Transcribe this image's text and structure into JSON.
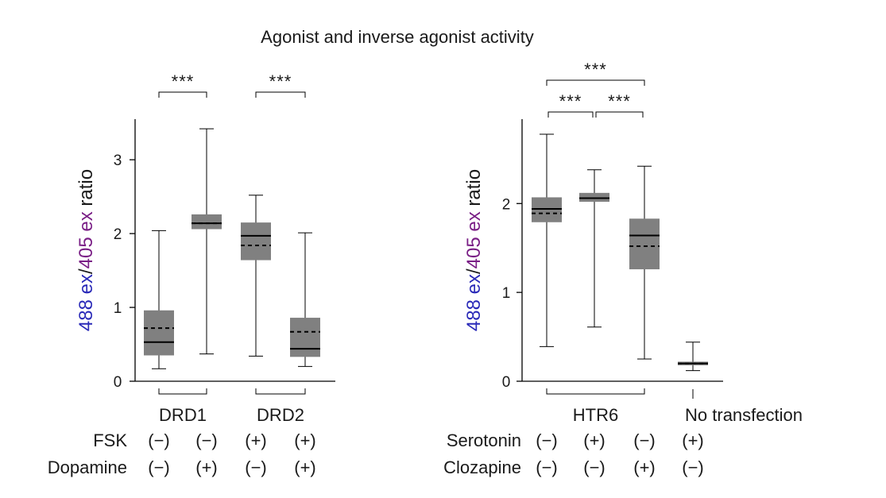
{
  "title": "Agonist and inverse agonist activity",
  "colors": {
    "box_fill": "#808080",
    "line": "#000000",
    "ylabel_blue": "#2a2ab8",
    "ylabel_purple": "#7a1f86",
    "ylabel_dark": "#1a1a1a"
  },
  "ylabel": {
    "part1": "488 ex",
    "slash": "/",
    "part2": "405 ex",
    "part3": " ratio"
  },
  "chart_data": [
    {
      "type": "box",
      "ylabel": "488 ex/405 ex ratio",
      "ylim": [
        0,
        3.55
      ],
      "yticks": [
        0,
        1,
        2,
        3
      ],
      "grid": false,
      "boxes": [
        {
          "median": 0.53,
          "mean": 0.72,
          "q1": 0.35,
          "q3": 0.96,
          "whisker_low": 0.17,
          "whisker_high": 2.04
        },
        {
          "median": 2.14,
          "mean": 2.14,
          "q1": 2.06,
          "q3": 2.26,
          "whisker_low": 0.37,
          "whisker_high": 3.42
        },
        {
          "median": 1.97,
          "mean": 1.84,
          "q1": 1.64,
          "q3": 2.15,
          "whisker_low": 0.34,
          "whisker_high": 2.52
        },
        {
          "median": 0.44,
          "mean": 0.67,
          "q1": 0.33,
          "q3": 0.86,
          "whisker_low": 0.2,
          "whisker_high": 2.01
        }
      ],
      "groups": [
        {
          "label": "DRD1",
          "boxes": [
            0,
            1
          ]
        },
        {
          "label": "DRD2",
          "boxes": [
            2,
            3
          ]
        }
      ],
      "significance": [
        {
          "from": 0,
          "to": 1,
          "label": "***",
          "level": 0
        },
        {
          "from": 2,
          "to": 3,
          "label": "***",
          "level": 0
        }
      ],
      "condition_rows": [
        {
          "label": "FSK",
          "values": [
            "(−)",
            "(−)",
            "(+)",
            "(+)"
          ]
        },
        {
          "label": "Dopamine",
          "values": [
            "(−)",
            "(+)",
            "(−)",
            "(+)"
          ]
        }
      ]
    },
    {
      "type": "box",
      "ylabel": "488 ex/405 ex ratio",
      "ylim": [
        0,
        2.95
      ],
      "yticks": [
        0,
        1,
        2
      ],
      "grid": false,
      "boxes": [
        {
          "median": 1.94,
          "mean": 1.89,
          "q1": 1.79,
          "q3": 2.07,
          "whisker_low": 0.39,
          "whisker_high": 2.78
        },
        {
          "median": 2.06,
          "mean": 2.06,
          "q1": 2.02,
          "q3": 2.12,
          "whisker_low": 0.61,
          "whisker_high": 2.38
        },
        {
          "median": 1.64,
          "mean": 1.52,
          "q1": 1.26,
          "q3": 1.83,
          "whisker_low": 0.25,
          "whisker_high": 2.42
        },
        {
          "median": 0.2,
          "mean": 0.2,
          "q1": 0.18,
          "q3": 0.22,
          "whisker_low": 0.12,
          "whisker_high": 0.44
        }
      ],
      "groups": [
        {
          "label": "HTR6",
          "boxes": [
            0,
            1,
            2
          ]
        },
        {
          "label": "No transfection",
          "boxes": [
            3
          ]
        }
      ],
      "significance": [
        {
          "from": 0,
          "to": 1,
          "label": "***",
          "level": 0
        },
        {
          "from": 1,
          "to": 2,
          "label": "***",
          "level": 0
        },
        {
          "from": 0,
          "to": 2,
          "label": "***",
          "level": 1
        }
      ],
      "condition_rows": [
        {
          "label": "Serotonin",
          "values": [
            "(−)",
            "(+)",
            "(−)",
            "(+)"
          ]
        },
        {
          "label": "Clozapine",
          "values": [
            "(−)",
            "(−)",
            "(+)",
            "(−)"
          ]
        }
      ]
    }
  ]
}
